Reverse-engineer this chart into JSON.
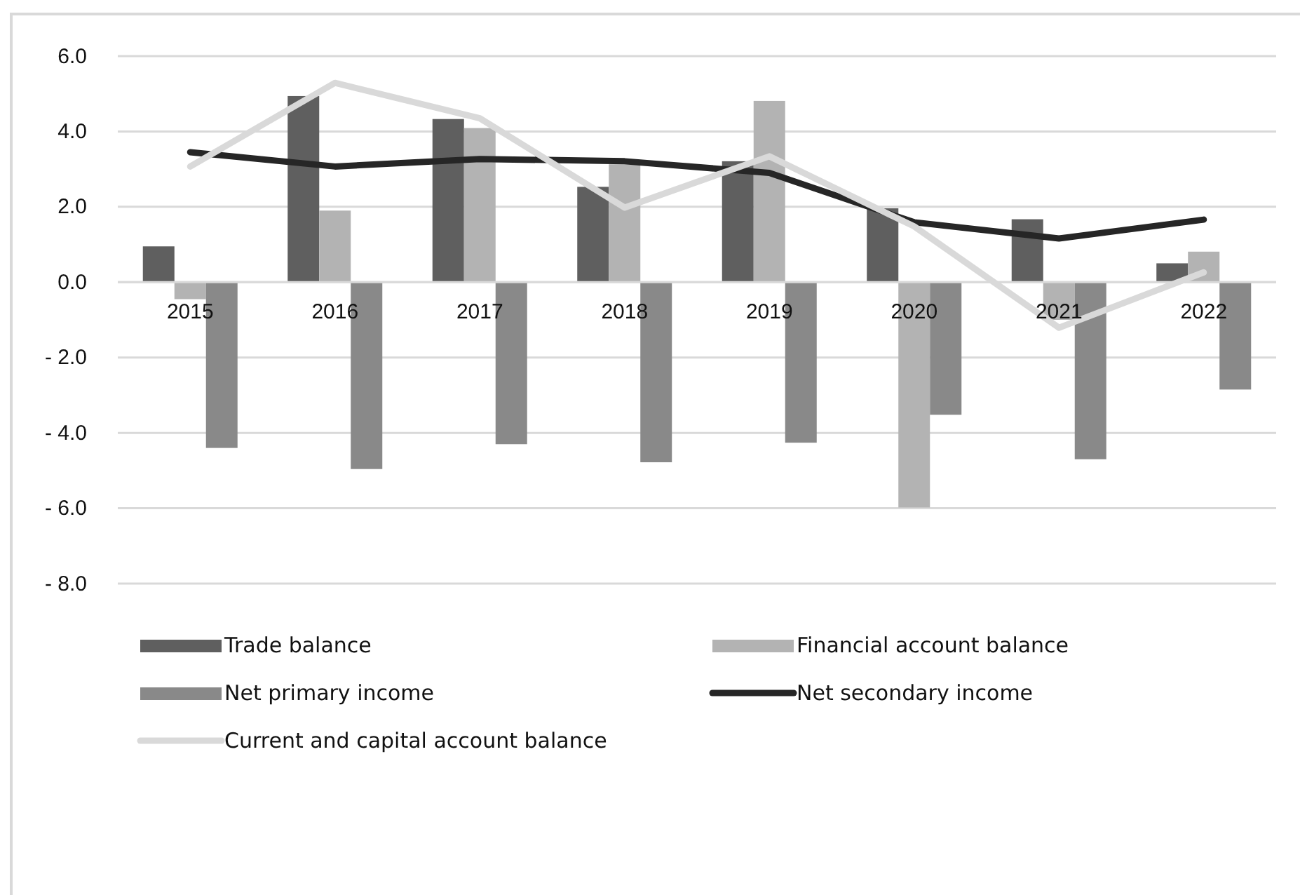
{
  "chart_data": {
    "type": "bar",
    "categories": [
      "2015",
      "2016",
      "2017",
      "2018",
      "2019",
      "2020",
      "2021",
      "2022"
    ],
    "series": [
      {
        "name": "Trade balance",
        "color": "#5f5f5f",
        "values": [
          0.95,
          4.94,
          4.33,
          2.53,
          3.21,
          1.96,
          1.67,
          0.5
        ]
      },
      {
        "name": "Financial account balance",
        "color": "#b3b3b3",
        "values": [
          -0.45,
          1.9,
          4.09,
          3.13,
          4.81,
          -5.98,
          -1.0,
          0.81
        ]
      },
      {
        "name": "Net primary income",
        "color": "#898989",
        "values": [
          -4.4,
          -4.96,
          -4.3,
          -4.78,
          -4.26,
          -3.52,
          -4.7,
          -2.85
        ]
      },
      {
        "name": "Net secondary income",
        "type": "line",
        "color": "#262626",
        "values": [
          3.45,
          3.07,
          3.27,
          3.21,
          2.9,
          1.59,
          1.16,
          1.66
        ]
      },
      {
        "name": "Current and capital account balance",
        "type": "line",
        "color": "#d9d9d9",
        "values": [
          3.07,
          5.29,
          4.35,
          1.98,
          3.34,
          1.48,
          -1.21,
          0.26
        ]
      }
    ],
    "ylim": [
      -8,
      6
    ],
    "yticks": [
      {
        "value": -8,
        "label": "- 8.0"
      },
      {
        "value": -6,
        "label": "- 6.0"
      },
      {
        "value": -4,
        "label": "- 4.0"
      },
      {
        "value": -2,
        "label": "- 2.0"
      },
      {
        "value": 0,
        "label": "0.0"
      },
      {
        "value": 2,
        "label": "2.0"
      },
      {
        "value": 4,
        "label": "4.0"
      },
      {
        "value": 6,
        "label": "6.0"
      }
    ],
    "grid": "y",
    "legend": "bottom",
    "marker": "none",
    "line_style": "solid"
  }
}
